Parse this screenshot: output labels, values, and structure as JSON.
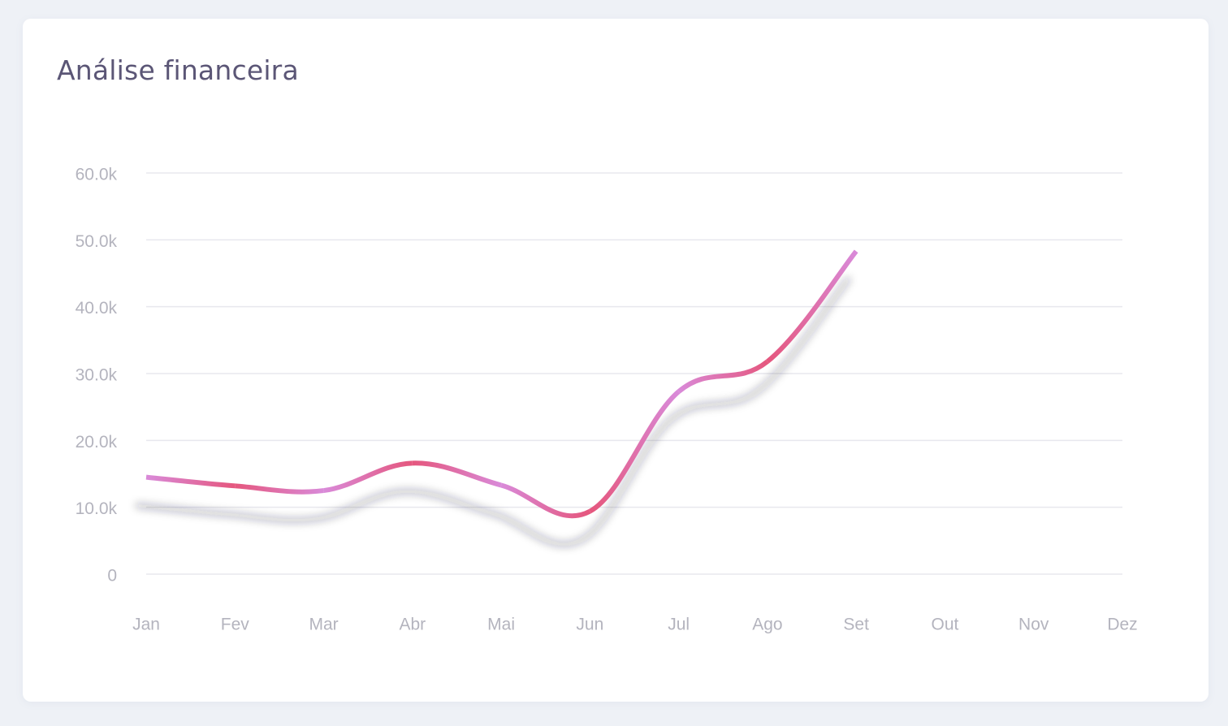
{
  "card": {
    "title": "Análise financeira"
  },
  "colors": {
    "background": "#eef1f6",
    "card": "#ffffff",
    "title": "#5b5676",
    "grid": "#e8e8ee",
    "tick_text": "#b4b4be",
    "line_primary": "#e5577e",
    "line_secondary": "#d98ad9"
  },
  "chart_data": {
    "type": "line",
    "title": "",
    "xlabel": "",
    "ylabel": "",
    "categories": [
      "Jan",
      "Fev",
      "Mar",
      "Abr",
      "Mai",
      "Jun",
      "Jul",
      "Ago",
      "Set",
      "Out",
      "Nov",
      "Dez"
    ],
    "series": [
      {
        "values": [
          14500,
          13200,
          12500,
          16600,
          13300,
          9400,
          27300,
          31800,
          48300,
          null,
          null,
          null
        ]
      }
    ],
    "yticks": [
      0,
      10000,
      20000,
      30000,
      40000,
      50000,
      60000
    ],
    "ytick_labels": [
      "0",
      "10.0k",
      "20.0k",
      "30.0k",
      "40.0k",
      "50.0k",
      "60.0k"
    ],
    "ylim": [
      0,
      60000
    ],
    "grid": true,
    "legend": "none",
    "curve": "smooth",
    "line_shadow": true
  }
}
